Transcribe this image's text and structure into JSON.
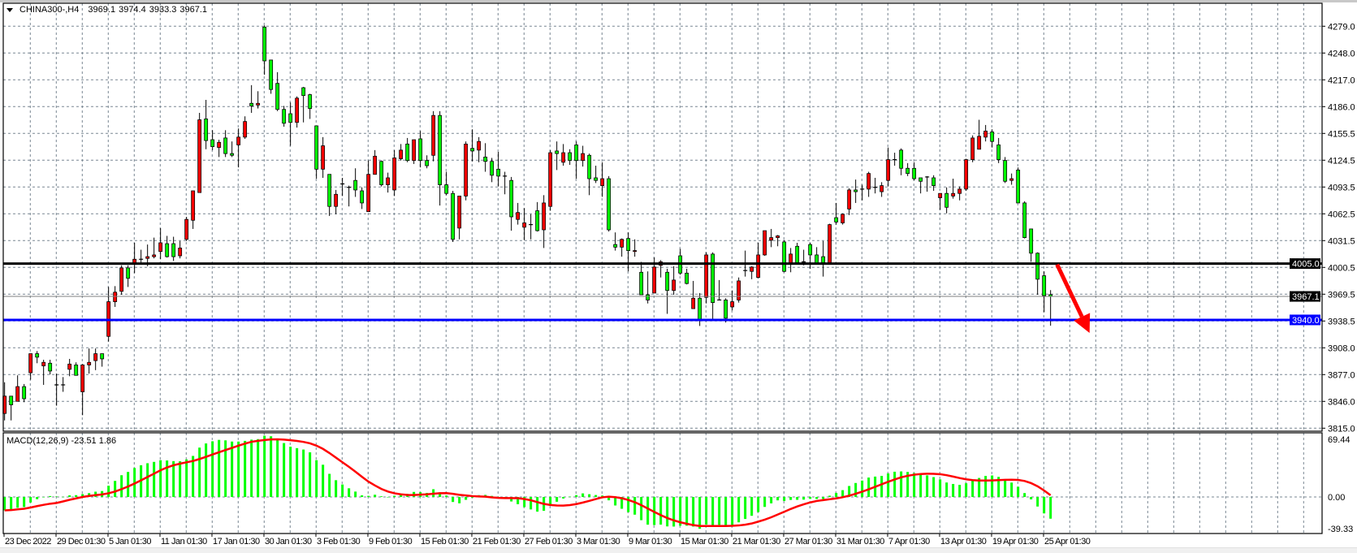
{
  "header": {
    "symbol": "CHINA300-,H4",
    "open": "3969.1",
    "high": "3974.4",
    "low": "3933.3",
    "close": "3967.1"
  },
  "macd_label": {
    "name": "MACD(12,26,9)",
    "main": "-23.51",
    "signal": "1.86"
  },
  "chart_data": [
    {
      "type": "candlestick",
      "title": "CHINA300-,H4",
      "ylim": [
        3815,
        4279
      ],
      "grid": true,
      "colors": {
        "bull": "#ff0000",
        "bear": "#00ff00",
        "outline": "#000000",
        "grid": "#7a8793"
      },
      "ytick_labels": [
        "4279.0",
        "4248.0",
        "4217.0",
        "4186.0",
        "4155.5",
        "4124.5",
        "4093.5",
        "4062.5",
        "4031.5",
        "4000.5",
        "3969.5",
        "3938.5",
        "3908.0",
        "3877.0",
        "3846.0",
        "3815.0"
      ],
      "xtick_labels": [
        "23 Dec 2022",
        "29 Dec 01:30",
        "5 Jan 01:30",
        "11 Jan 01:30",
        "17 Jan 01:30",
        "30 Jan 01:30",
        "3 Feb 01:30",
        "9 Feb 01:30",
        "15 Feb 01:30",
        "21 Feb 01:30",
        "27 Feb 01:30",
        "3 Mar 01:30",
        "9 Mar 01:30",
        "15 Mar 01:30",
        "21 Mar 01:30",
        "27 Mar 01:30",
        "31 Mar 01:30",
        "7 Apr 01:30",
        "13 Apr 01:30",
        "19 Apr 01:30",
        "25 Apr 01:30"
      ],
      "candles_ohlc": [
        [
          3832,
          3868,
          3824,
          3852
        ],
        [
          3852,
          3852,
          3824,
          3842
        ],
        [
          3846,
          3876,
          3846,
          3863
        ],
        [
          3863,
          3866,
          3845,
          3849
        ],
        [
          3879,
          3901,
          3871,
          3901
        ],
        [
          3901,
          3904,
          3890,
          3897
        ],
        [
          3887,
          3894,
          3865,
          3891
        ],
        [
          3890,
          3894,
          3877,
          3881
        ],
        [
          3865,
          3878,
          3841,
          3865
        ],
        [
          3865,
          3874,
          3857,
          3865
        ],
        [
          3883,
          3895,
          3875,
          3889
        ],
        [
          3888,
          3891,
          3876,
          3876
        ],
        [
          3857,
          3889,
          3830,
          3888
        ],
        [
          3888,
          3907,
          3878,
          3891
        ],
        [
          3893,
          3907,
          3882,
          3901
        ],
        [
          3901,
          3901,
          3886,
          3895
        ],
        [
          3921,
          3978,
          3915,
          3961
        ],
        [
          3961,
          3979,
          3955,
          3972
        ],
        [
          3973,
          4003,
          3969,
          4000
        ],
        [
          4000,
          4003,
          3978,
          3988
        ],
        [
          4005,
          4029,
          3994,
          4010
        ],
        [
          4010,
          4021,
          4004,
          4010
        ],
        [
          4011,
          4027,
          4002,
          4013
        ],
        [
          4013,
          4035,
          4011,
          4015
        ],
        [
          4019,
          4046,
          4010,
          4029
        ],
        [
          4028,
          4037,
          4012,
          4013
        ],
        [
          4028,
          4036,
          4008,
          4013
        ],
        [
          4014,
          4031,
          4011,
          4023
        ],
        [
          4033,
          4059,
          4031,
          4056
        ],
        [
          4055,
          4089,
          4045,
          4089
        ],
        [
          4087,
          4179,
          4087,
          4171
        ],
        [
          4172,
          4194,
          4137,
          4147
        ],
        [
          4148,
          4159,
          4136,
          4140
        ],
        [
          4139,
          4148,
          4128,
          4145
        ],
        [
          4150,
          4159,
          4128,
          4132
        ],
        [
          4132,
          4146,
          4128,
          4130
        ],
        [
          4142,
          4161,
          4116,
          4151
        ],
        [
          4151,
          4175,
          4149,
          4169
        ],
        [
          4190,
          4211,
          4179,
          4187
        ],
        [
          4188,
          4204,
          4184,
          4190
        ],
        [
          4278,
          4280,
          4223,
          4239
        ],
        [
          4240,
          4240,
          4201,
          4206
        ],
        [
          4213,
          4226,
          4181,
          4183
        ],
        [
          4183,
          4187,
          4163,
          4167
        ],
        [
          4178,
          4191,
          4141,
          4168
        ],
        [
          4168,
          4198,
          4162,
          4196
        ],
        [
          4208,
          4209,
          4168,
          4199
        ],
        [
          4200,
          4201,
          4172,
          4184
        ],
        [
          4164,
          4164,
          4103,
          4114
        ],
        [
          4114,
          4151,
          4104,
          4141
        ],
        [
          4108,
          4108,
          4060,
          4071
        ],
        [
          4071,
          4090,
          4062,
          4085
        ],
        [
          4097,
          4104,
          4083,
          4097
        ],
        [
          4093,
          4095,
          4071,
          4093
        ],
        [
          4101,
          4115,
          4082,
          4090
        ],
        [
          4089,
          4093,
          4068,
          4075
        ],
        [
          4065,
          4124,
          4065,
          4108
        ],
        [
          4108,
          4136,
          4108,
          4129
        ],
        [
          4123,
          4124,
          4094,
          4096
        ],
        [
          4096,
          4110,
          4087,
          4104
        ],
        [
          4090,
          4136,
          4083,
          4127
        ],
        [
          4126,
          4143,
          4124,
          4136
        ],
        [
          4143,
          4150,
          4122,
          4124
        ],
        [
          4124,
          4148,
          4120,
          4148
        ],
        [
          4149,
          4158,
          4116,
          4124
        ],
        [
          4124,
          4130,
          4115,
          4118
        ],
        [
          4130,
          4181,
          4123,
          4176
        ],
        [
          4176,
          4181,
          4072,
          4096
        ],
        [
          4096,
          4111,
          4084,
          4086
        ],
        [
          4086,
          4089,
          4030,
          4033
        ],
        [
          4046,
          4083,
          4033,
          4083
        ],
        [
          4083,
          4146,
          4078,
          4143
        ],
        [
          4138,
          4160,
          4123,
          4135
        ],
        [
          4136,
          4151,
          4122,
          4146
        ],
        [
          4128,
          4144,
          4111,
          4123
        ],
        [
          4123,
          4127,
          4099,
          4107
        ],
        [
          4114,
          4134,
          4094,
          4106
        ],
        [
          4106,
          4111,
          4085,
          4106
        ],
        [
          4101,
          4105,
          4043,
          4059
        ],
        [
          4056,
          4075,
          4050,
          4064
        ],
        [
          4047,
          4069,
          4032,
          4052
        ],
        [
          4050,
          4062,
          4033,
          4050
        ],
        [
          4066,
          4076,
          4042,
          4043
        ],
        [
          4044,
          4084,
          4023,
          4075
        ],
        [
          4071,
          4136,
          4066,
          4133
        ],
        [
          4135,
          4146,
          4113,
          4132
        ],
        [
          4122,
          4143,
          4118,
          4133
        ],
        [
          4133,
          4137,
          4119,
          4124
        ],
        [
          4142,
          4146,
          4103,
          4124
        ],
        [
          4124,
          4141,
          4117,
          4132
        ],
        [
          4130,
          4132,
          4084,
          4103
        ],
        [
          4104,
          4118,
          4098,
          4101
        ],
        [
          4095,
          4122,
          4082,
          4103
        ],
        [
          4103,
          4106,
          4042,
          4044
        ],
        [
          4027,
          4041,
          4020,
          4024
        ],
        [
          4024,
          4034,
          4013,
          4033
        ],
        [
          4034,
          4041,
          3996,
          4020
        ],
        [
          4019,
          4033,
          4013,
          4020
        ],
        [
          3995,
          4007,
          3969,
          3969
        ],
        [
          3969,
          3996,
          3959,
          3963
        ],
        [
          3971,
          4012,
          3971,
          4001
        ],
        [
          4003,
          4009,
          3989,
          4007
        ],
        [
          3995,
          3999,
          3947,
          3974
        ],
        [
          3974,
          4002,
          3969,
          3986
        ],
        [
          4014,
          4022,
          3992,
          3994
        ],
        [
          3994,
          3999,
          3981,
          3982
        ],
        [
          3953,
          3985,
          3953,
          3965
        ],
        [
          3965,
          3971,
          3933,
          3940
        ],
        [
          3966,
          4018,
          3959,
          4015
        ],
        [
          4016,
          4018,
          3940,
          3960
        ],
        [
          3963,
          3986,
          3963,
          3963
        ],
        [
          3963,
          3965,
          3937,
          3942
        ],
        [
          3955,
          3974,
          3951,
          3961
        ],
        [
          3963,
          3989,
          3960,
          3985
        ],
        [
          3997,
          4020,
          3990,
          3997
        ],
        [
          3996,
          4002,
          3987,
          4001
        ],
        [
          3989,
          4029,
          3988,
          4015
        ],
        [
          4015,
          4043,
          4014,
          4043
        ],
        [
          4032,
          4045,
          4024,
          4035
        ],
        [
          4035,
          4038,
          4025,
          4037
        ],
        [
          4030,
          4032,
          3995,
          3996
        ],
        [
          4005,
          4023,
          3995,
          4016
        ],
        [
          4025,
          4029,
          4006,
          4006
        ],
        [
          4007,
          4021,
          4003,
          4007
        ],
        [
          4027,
          4029,
          3999,
          4015
        ],
        [
          4015,
          4024,
          4005,
          4005
        ],
        [
          4013,
          4031,
          3990,
          4006
        ],
        [
          4006,
          4051,
          4005,
          4050
        ],
        [
          4058,
          4075,
          4050,
          4053
        ],
        [
          4052,
          4063,
          4050,
          4062
        ],
        [
          4068,
          4092,
          4061,
          4090
        ],
        [
          4090,
          4102,
          4075,
          4088
        ],
        [
          4091,
          4096,
          4078,
          4091
        ],
        [
          4091,
          4111,
          4082,
          4109
        ],
        [
          4093,
          4104,
          4086,
          4093
        ],
        [
          4088,
          4099,
          4082,
          4095
        ],
        [
          4101,
          4139,
          4094,
          4125
        ],
        [
          4125,
          4133,
          4118,
          4125
        ],
        [
          4136,
          4138,
          4107,
          4115
        ],
        [
          4115,
          4121,
          4106,
          4109
        ],
        [
          4115,
          4122,
          4101,
          4103
        ],
        [
          4104,
          4104,
          4086,
          4100
        ],
        [
          4105,
          4106,
          4088,
          4105
        ],
        [
          4104,
          4107,
          4089,
          4095
        ],
        [
          4081,
          4086,
          4067,
          4086
        ],
        [
          4086,
          4093,
          4063,
          4070
        ],
        [
          4083,
          4103,
          4080,
          4086
        ],
        [
          4086,
          4094,
          4078,
          4091
        ],
        [
          4091,
          4126,
          4089,
          4125
        ],
        [
          4125,
          4153,
          4122,
          4150
        ],
        [
          4137,
          4171,
          4137,
          4152
        ],
        [
          4151,
          4165,
          4146,
          4158
        ],
        [
          4157,
          4160,
          4139,
          4146
        ],
        [
          4142,
          4150,
          4121,
          4125
        ],
        [
          4124,
          4128,
          4098,
          4100
        ],
        [
          4101,
          4109,
          4096,
          4103
        ],
        [
          4113,
          4116,
          4075,
          4075
        ],
        [
          4075,
          4077,
          4034,
          4035
        ],
        [
          4045,
          4045,
          4007,
          4017
        ],
        [
          4017,
          4018,
          3969,
          3987
        ],
        [
          3991,
          3996,
          3949,
          3968
        ],
        [
          3969.1,
          3974.4,
          3933.3,
          3967.1
        ]
      ],
      "horizontal_lines": [
        {
          "price": 4005.0,
          "label": "4005.0",
          "color": "#000000"
        },
        {
          "price": 3940.0,
          "label": "3940.0",
          "color": "#0000ff"
        }
      ],
      "bid_line": {
        "price": 3967.1,
        "label": "3967.1",
        "color": "#808080"
      },
      "annotation_arrow": {
        "color": "#ff0000",
        "from": {
          "bar": 163,
          "price": 4004
        },
        "to": {
          "bar": 168,
          "price": 3925
        }
      }
    },
    {
      "type": "bar+line",
      "title": "MACD(12,26,9)",
      "ylim": [
        -39.33,
        69.44
      ],
      "ytick_labels": [
        "69.44",
        "0.00",
        "-39.33"
      ],
      "last_values": {
        "main": -23.51,
        "signal": 1.86
      },
      "colors": {
        "histogram": "#00ff00",
        "signal": "#ff0000"
      }
    }
  ]
}
